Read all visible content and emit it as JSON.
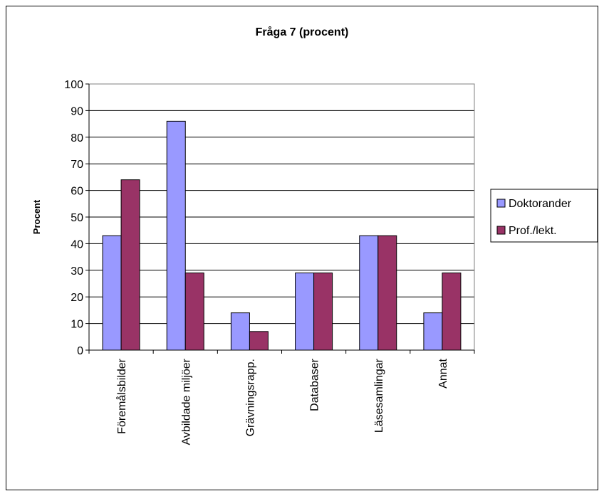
{
  "chart_data": {
    "type": "bar",
    "title": "Fråga 7 (procent)",
    "ylabel": "Procent",
    "xlabel": "",
    "ylim": [
      0,
      100
    ],
    "yticks": [
      0,
      10,
      20,
      30,
      40,
      50,
      60,
      70,
      80,
      90,
      100
    ],
    "grid": true,
    "legend_position": "right",
    "categories": [
      "Föremålsbilder",
      "Avbildade miljöer",
      "Grävningsrapp.",
      "Databaser",
      "Läsesamlingar",
      "Annat"
    ],
    "series": [
      {
        "name": "Doktorander",
        "color": "#9999ff",
        "values": [
          43,
          86,
          14,
          29,
          43,
          14
        ]
      },
      {
        "name": "Prof./lekt.",
        "color": "#993366",
        "values": [
          64,
          29,
          7,
          29,
          43,
          29
        ]
      }
    ]
  }
}
